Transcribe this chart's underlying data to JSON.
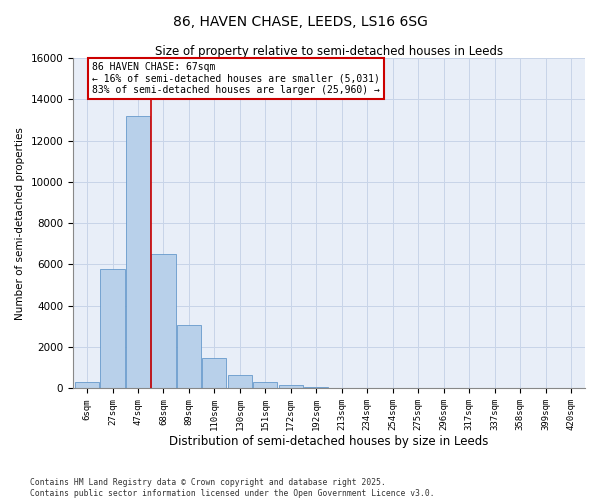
{
  "title": "86, HAVEN CHASE, LEEDS, LS16 6SG",
  "subtitle": "Size of property relative to semi-detached houses in Leeds",
  "xlabel": "Distribution of semi-detached houses by size in Leeds",
  "ylabel": "Number of semi-detached properties",
  "categories": [
    "6sqm",
    "27sqm",
    "47sqm",
    "68sqm",
    "89sqm",
    "110sqm",
    "130sqm",
    "151sqm",
    "172sqm",
    "192sqm",
    "213sqm",
    "234sqm",
    "254sqm",
    "275sqm",
    "296sqm",
    "317sqm",
    "337sqm",
    "358sqm",
    "399sqm",
    "420sqm"
  ],
  "values": [
    300,
    5800,
    13200,
    6500,
    3050,
    1450,
    650,
    300,
    180,
    90,
    0,
    0,
    0,
    0,
    0,
    0,
    0,
    0,
    0,
    0
  ],
  "bar_color": "#b8d0ea",
  "bar_edge_color": "#6699cc",
  "property_line_x": 2.5,
  "property_line_color": "#cc0000",
  "annotation_text": "86 HAVEN CHASE: 67sqm\n← 16% of semi-detached houses are smaller (5,031)\n83% of semi-detached houses are larger (25,960) →",
  "annotation_box_color": "#cc0000",
  "background_color": "#e8eef8",
  "grid_color": "#c8d4e8",
  "ylim": [
    0,
    16000
  ],
  "yticks": [
    0,
    2000,
    4000,
    6000,
    8000,
    10000,
    12000,
    14000,
    16000
  ],
  "footer_line1": "Contains HM Land Registry data © Crown copyright and database right 2025.",
  "footer_line2": "Contains public sector information licensed under the Open Government Licence v3.0."
}
